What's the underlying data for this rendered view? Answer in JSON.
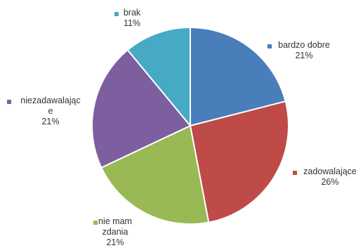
{
  "chart_data": {
    "type": "pie",
    "title": "",
    "slices": [
      {
        "label_lines": [
          "bardzo dobre"
        ],
        "percent_label": "21%",
        "value": 21,
        "color": "#4A7EBB"
      },
      {
        "label_lines": [
          "zadowalające"
        ],
        "percent_label": "26%",
        "value": 26,
        "color": "#BE4B48"
      },
      {
        "label_lines": [
          "nie mam",
          "zdania"
        ],
        "percent_label": "21%",
        "value": 21,
        "color": "#98B954"
      },
      {
        "label_lines": [
          "niezadawalając",
          "e"
        ],
        "percent_label": "21%",
        "value": 21,
        "color": "#7D5FA0"
      },
      {
        "label_lines": [
          "brak"
        ],
        "percent_label": "11%",
        "value": 11,
        "color": "#46AAC5"
      }
    ],
    "start_direction": "top",
    "direction": "clockwise",
    "legend": "none",
    "data_labels": "outside, category name and percent"
  }
}
